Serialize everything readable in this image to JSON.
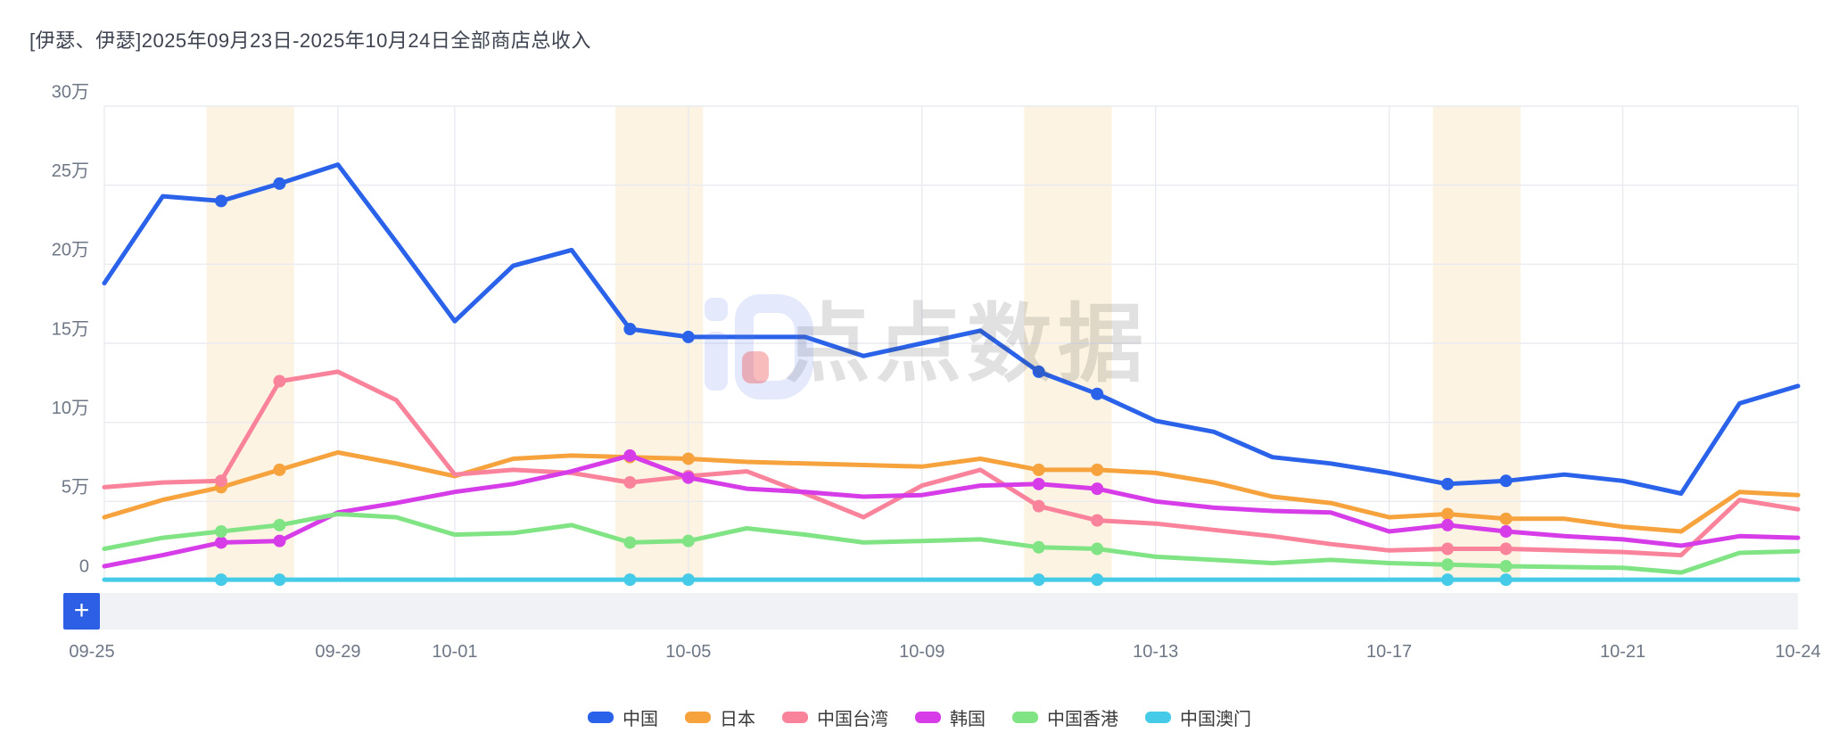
{
  "title": "[伊瑟、伊瑟]2025年09月23日-2025年10月24日全部商店总收入",
  "controls": {
    "zoom_button_label": "+"
  },
  "watermark": {
    "brand_text": "点点数据"
  },
  "chart_data": {
    "type": "line",
    "title": "[伊瑟、伊瑟]2025年09月23日-2025年10月24日全部商店总收入",
    "xlabel": "",
    "ylabel": "",
    "y_unit": "万",
    "ylim": [
      0,
      30
    ],
    "grid": true,
    "legend_position": "bottom",
    "x": [
      "09-25",
      "09-26",
      "09-27",
      "09-28",
      "09-29",
      "09-30",
      "10-01",
      "10-02",
      "10-03",
      "10-04",
      "10-05",
      "10-06",
      "10-07",
      "10-08",
      "10-09",
      "10-10",
      "10-11",
      "10-12",
      "10-13",
      "10-14",
      "10-15",
      "10-16",
      "10-17",
      "10-18",
      "10-19",
      "10-20",
      "10-21",
      "10-22",
      "10-23",
      "10-24"
    ],
    "x_tick_labels": [
      "09-25",
      "09-29",
      "10-01",
      "10-05",
      "10-09",
      "10-13",
      "10-17",
      "10-21",
      "10-24"
    ],
    "x_tick_indices": [
      0,
      4,
      6,
      10,
      14,
      18,
      22,
      26,
      29
    ],
    "y_ticks": [
      {
        "label": "30万",
        "value": 30
      },
      {
        "label": "25万",
        "value": 25
      },
      {
        "label": "20万",
        "value": 20
      },
      {
        "label": "15万",
        "value": 15
      },
      {
        "label": "10万",
        "value": 10
      },
      {
        "label": "5万",
        "value": 5
      },
      {
        "label": "0",
        "value": 0
      }
    ],
    "weekend_band_pairs": [
      [
        2,
        3
      ],
      [
        9,
        10
      ],
      [
        16,
        17
      ],
      [
        23,
        24
      ]
    ],
    "weekend_band_color": "#fdf3e2",
    "marker_indices": [
      2,
      3,
      9,
      10,
      16,
      17,
      23,
      24
    ],
    "grid_color": "#e9ebf1",
    "axis_label_color": "#6e7786",
    "series": [
      {
        "id": "china",
        "name": "中国",
        "color": "#2a62e9",
        "values": [
          18.8,
          24.3,
          24.0,
          25.1,
          26.3,
          21.4,
          16.4,
          19.9,
          20.9,
          15.9,
          15.4,
          15.4,
          15.4,
          14.2,
          15.0,
          15.8,
          13.2,
          11.8,
          10.1,
          9.4,
          7.8,
          7.4,
          6.8,
          6.1,
          6.3,
          6.7,
          6.3,
          5.5,
          11.2,
          12.3
        ]
      },
      {
        "id": "japan",
        "name": "日本",
        "color": "#f6a23d",
        "values": [
          4.0,
          5.1,
          5.9,
          7.0,
          8.1,
          7.4,
          6.6,
          7.7,
          7.9,
          7.8,
          7.7,
          7.5,
          7.4,
          7.3,
          7.2,
          7.7,
          7.0,
          7.0,
          6.8,
          6.2,
          5.3,
          4.9,
          4.0,
          4.2,
          3.9,
          3.9,
          3.4,
          3.1,
          5.6,
          5.4
        ]
      },
      {
        "id": "taiwan",
        "name": "中国台湾",
        "color": "#f9839a",
        "values": [
          5.9,
          6.2,
          6.3,
          12.6,
          13.2,
          11.4,
          6.7,
          7.0,
          6.8,
          6.2,
          6.6,
          6.9,
          5.5,
          4.0,
          6.0,
          7.0,
          4.7,
          3.8,
          3.6,
          3.2,
          2.8,
          2.3,
          1.9,
          2.0,
          2.0,
          1.9,
          1.8,
          1.6,
          5.1,
          4.5
        ]
      },
      {
        "id": "korea",
        "name": "韩国",
        "color": "#d63ce8",
        "values": [
          0.9,
          1.6,
          2.4,
          2.5,
          4.3,
          4.9,
          5.6,
          6.1,
          6.9,
          7.9,
          6.5,
          5.8,
          5.6,
          5.3,
          5.4,
          6.0,
          6.1,
          5.8,
          5.0,
          4.6,
          4.4,
          4.3,
          3.1,
          3.5,
          3.1,
          2.8,
          2.6,
          2.2,
          2.8,
          2.7
        ]
      },
      {
        "id": "hongkong",
        "name": "中国香港",
        "color": "#80e484",
        "values": [
          2.0,
          2.7,
          3.1,
          3.5,
          4.2,
          4.0,
          2.9,
          3.0,
          3.5,
          2.4,
          2.5,
          3.3,
          2.9,
          2.4,
          2.5,
          2.6,
          2.1,
          2.0,
          1.5,
          1.3,
          1.1,
          1.3,
          1.1,
          1.0,
          0.9,
          0.85,
          0.8,
          0.5,
          1.75,
          1.85
        ]
      },
      {
        "id": "macau",
        "name": "中国澳门",
        "color": "#45cbe8",
        "values": [
          0.05,
          0.05,
          0.05,
          0.05,
          0.05,
          0.05,
          0.05,
          0.05,
          0.05,
          0.05,
          0.05,
          0.05,
          0.05,
          0.05,
          0.05,
          0.05,
          0.05,
          0.05,
          0.05,
          0.05,
          0.05,
          0.05,
          0.05,
          0.05,
          0.05,
          0.05,
          0.05,
          0.05,
          0.05,
          0.05
        ]
      }
    ]
  }
}
